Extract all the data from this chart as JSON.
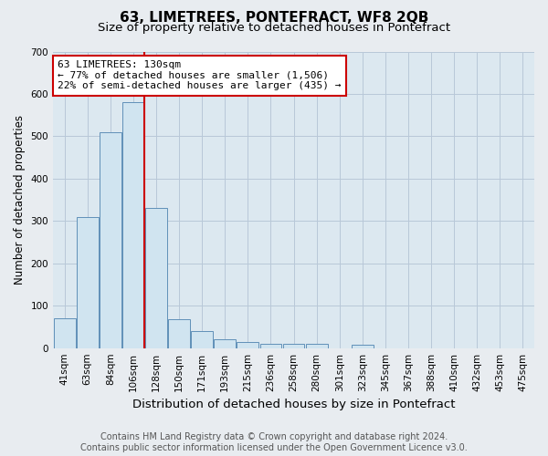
{
  "title": "63, LIMETREES, PONTEFRACT, WF8 2QB",
  "subtitle": "Size of property relative to detached houses in Pontefract",
  "xlabel": "Distribution of detached houses by size in Pontefract",
  "ylabel": "Number of detached properties",
  "footer_line1": "Contains HM Land Registry data © Crown copyright and database right 2024.",
  "footer_line2": "Contains public sector information licensed under the Open Government Licence v3.0.",
  "categories": [
    "41sqm",
    "63sqm",
    "84sqm",
    "106sqm",
    "128sqm",
    "150sqm",
    "171sqm",
    "193sqm",
    "215sqm",
    "236sqm",
    "258sqm",
    "280sqm",
    "301sqm",
    "323sqm",
    "345sqm",
    "367sqm",
    "388sqm",
    "410sqm",
    "432sqm",
    "453sqm",
    "475sqm"
  ],
  "values": [
    70,
    310,
    510,
    580,
    330,
    68,
    40,
    20,
    15,
    10,
    10,
    10,
    0,
    8,
    0,
    0,
    0,
    0,
    0,
    0,
    0
  ],
  "bar_color": "#d0e4f0",
  "bar_edge_color": "#6090b8",
  "vline_index": 4,
  "vline_color": "#cc0000",
  "annotation_text": "63 LIMETREES: 130sqm\n← 77% of detached houses are smaller (1,506)\n22% of semi-detached houses are larger (435) →",
  "annotation_box_color": "#ffffff",
  "annotation_box_edge": "#cc0000",
  "ylim": [
    0,
    700
  ],
  "yticks": [
    0,
    100,
    200,
    300,
    400,
    500,
    600,
    700
  ],
  "fig_bg_color": "#e8ecf0",
  "plot_bg_color": "#dce8f0",
  "grid_color": "#b8c8d8",
  "title_fontsize": 11,
  "subtitle_fontsize": 9.5,
  "xlabel_fontsize": 9.5,
  "ylabel_fontsize": 8.5,
  "tick_fontsize": 7.5,
  "annotation_fontsize": 8,
  "footer_fontsize": 7
}
